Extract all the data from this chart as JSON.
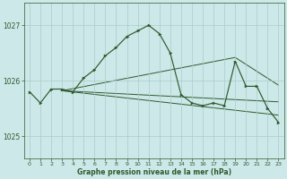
{
  "title": "Graphe pression niveau de la mer (hPa)",
  "bg_color": "#cce8e8",
  "grid_color": "#aacccc",
  "line_color": "#2d5a2d",
  "ylim": [
    1024.6,
    1027.4
  ],
  "yticks": [
    1025,
    1026,
    1027
  ],
  "xlim": [
    -0.5,
    23.5
  ],
  "xticks": [
    0,
    1,
    2,
    3,
    4,
    5,
    6,
    7,
    8,
    9,
    10,
    11,
    12,
    13,
    14,
    15,
    16,
    17,
    18,
    19,
    20,
    21,
    22,
    23
  ],
  "hours": [
    0,
    1,
    2,
    3,
    4,
    5,
    6,
    7,
    8,
    9,
    10,
    11,
    12,
    13,
    14,
    15,
    16,
    17,
    18,
    19,
    20,
    21,
    22,
    23
  ],
  "pressure": [
    1025.8,
    1025.6,
    1025.85,
    1025.85,
    1025.8,
    1026.05,
    1026.2,
    1026.45,
    1026.6,
    1026.8,
    1026.9,
    1027.0,
    1026.85,
    1026.5,
    1025.75,
    1025.6,
    1025.55,
    1025.6,
    1025.55,
    1026.35,
    1025.9,
    1025.9,
    1025.5,
    1025.25
  ],
  "trend1_x": [
    3,
    23
  ],
  "trend1_y": [
    1025.82,
    1025.85
  ],
  "trend2_x": [
    3,
    19
  ],
  "trend2_y": [
    1025.82,
    1026.42
  ],
  "trend3_x": [
    3,
    23
  ],
  "trend3_y": [
    1025.82,
    1025.38
  ],
  "trend4_x": [
    3,
    23
  ],
  "trend4_y": [
    1025.82,
    1025.62
  ]
}
